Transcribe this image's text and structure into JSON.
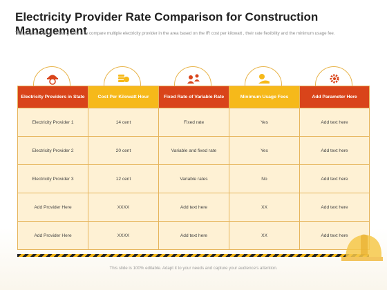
{
  "title": "Electricity Provider Rate Comparison for Construction Management",
  "subtitle": "The purpose of the following slide is to compare multiple  electricity provider in the area based on the IR  cost per kilowatt , their rate flexibility and the minimum  usage fee.",
  "icons": [
    "engineer-icon",
    "coins-icon",
    "people-icon",
    "money-icon",
    "gear-icon"
  ],
  "colors": {
    "red": "#d9441a",
    "yellow": "#f6b91a",
    "cell": "#fef1d4",
    "border": "#e6b45a"
  },
  "table": {
    "headers": [
      "Electricity Providers in State",
      "Cost Per Kilowatt Hour",
      "Fixed Rate of Variable Rate",
      "Minimum Usage Fees",
      "Add Parameter Here"
    ],
    "rows": [
      [
        "Electricity Provider 1",
        "14 cent",
        "Fixed rate",
        "Yes",
        "Add text here"
      ],
      [
        "Electricity Provider 2",
        "20 cent",
        "Variable and fixed rate",
        "Yes",
        "Add text here"
      ],
      [
        "Electricity Provider 3",
        "12 cent",
        "Variable rates",
        "No",
        "Add text here"
      ],
      [
        "Add Provider Here",
        "XXXX",
        "Add text here",
        "XX",
        "Add text here"
      ],
      [
        "Add Provider Here",
        "XXXX",
        "Add text here",
        "XX",
        "Add text here"
      ]
    ]
  },
  "footer": "This slide is 100% editable. Adapt it to your needs and capture your audience's attention."
}
